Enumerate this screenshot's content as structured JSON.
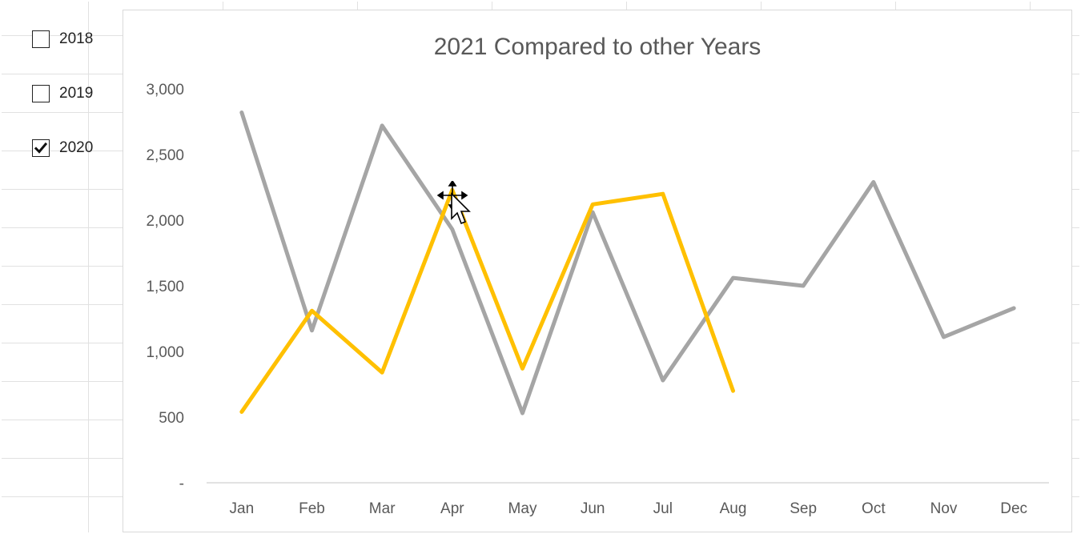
{
  "checkboxes": [
    {
      "label": "2018",
      "checked": false
    },
    {
      "label": "2019",
      "checked": false
    },
    {
      "label": "2020",
      "checked": true
    }
  ],
  "chart_data": {
    "type": "line",
    "title": "2021 Compared to other Years",
    "xlabel": "",
    "ylabel": "",
    "categories": [
      "Jan",
      "Feb",
      "Mar",
      "Apr",
      "May",
      "Jun",
      "Jul",
      "Aug",
      "Sep",
      "Oct",
      "Nov",
      "Dec"
    ],
    "y_ticks": [
      "-",
      "500",
      "1,000",
      "1,500",
      "2,000",
      "2,500",
      "3,000"
    ],
    "ylim": [
      0,
      3000
    ],
    "grid": false,
    "legend": "none",
    "series": [
      {
        "color": "#a5a5a5",
        "values": [
          2820,
          1160,
          2720,
          1930,
          530,
          2060,
          780,
          1560,
          1500,
          2290,
          1110,
          1330
        ]
      },
      {
        "color": "#ffc000",
        "values": [
          540,
          1310,
          840,
          2230,
          870,
          2120,
          2200,
          700,
          null,
          null,
          null,
          null
        ]
      }
    ]
  }
}
